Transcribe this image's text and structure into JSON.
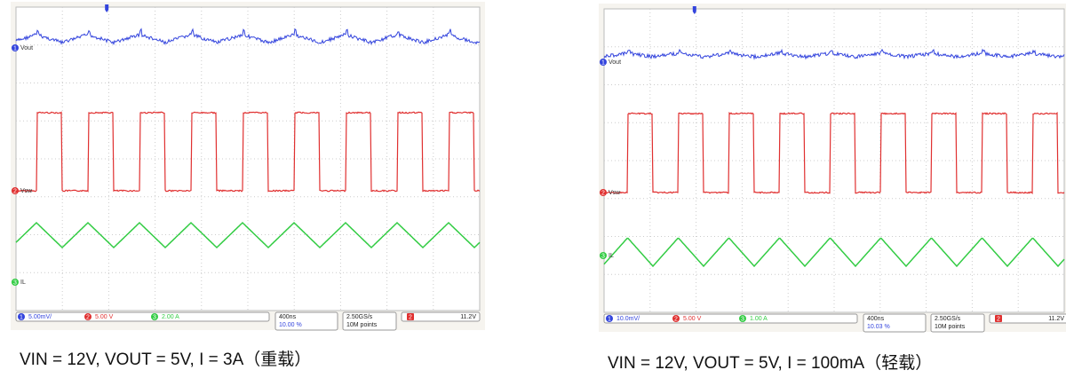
{
  "scopes": [
    {
      "channels": [
        {
          "number": "1",
          "label": "Vout"
        },
        {
          "number": "2",
          "label": "Vsw"
        },
        {
          "number": "3",
          "label": "IL"
        }
      ],
      "status": {
        "ch1": "5.00mV/",
        "ch2": "5.00 V",
        "ch3": "2.00 A",
        "timebase": "400ns",
        "offset": "10.00 %",
        "rate": "2.50GS/s",
        "points": "10M points",
        "trigger_channel": "2",
        "trigger_level": "11.2V"
      },
      "caption": "VIN = 12V, VOUT = 5V, I = 3A（重载）"
    },
    {
      "channels": [
        {
          "number": "1",
          "label": "Vout"
        },
        {
          "number": "2",
          "label": "Vsw"
        },
        {
          "number": "3",
          "label": "IL"
        }
      ],
      "status": {
        "ch1": "10.0mV/",
        "ch2": "5.00 V",
        "ch3": "1.00 A",
        "timebase": "400ns",
        "offset": "10.03 %",
        "rate": "2.50GS/s",
        "points": "10M points",
        "trigger_channel": "2",
        "trigger_level": "11.2V"
      },
      "caption": "VIN = 12V, VOUT = 5V, I = 100mA（轻载）"
    }
  ]
}
